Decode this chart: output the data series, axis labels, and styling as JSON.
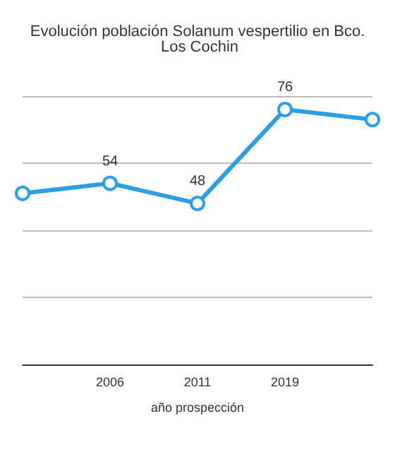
{
  "chart_data": {
    "type": "line",
    "title": "Evolución población Solanum vespertilio en Bco. Los Cochin",
    "xlabel": "año prospección",
    "categories": [
      null,
      "2006",
      "2011",
      "2019",
      null
    ],
    "series": [
      {
        "color": "#2b9fe6",
        "values": [
          51,
          54,
          48,
          76,
          73
        ],
        "value_labels": [
          null,
          "54",
          "48",
          "76",
          null
        ]
      }
    ],
    "ylim": [
      0,
      80
    ],
    "yticks": [
      {
        "value": 0,
        "label": null
      },
      {
        "value": 20,
        "label": null
      },
      {
        "value": 40,
        "label": null
      },
      {
        "value": 60,
        "label": null
      },
      {
        "value": 80,
        "label": null
      }
    ],
    "grid": "y",
    "marker": "circle"
  }
}
